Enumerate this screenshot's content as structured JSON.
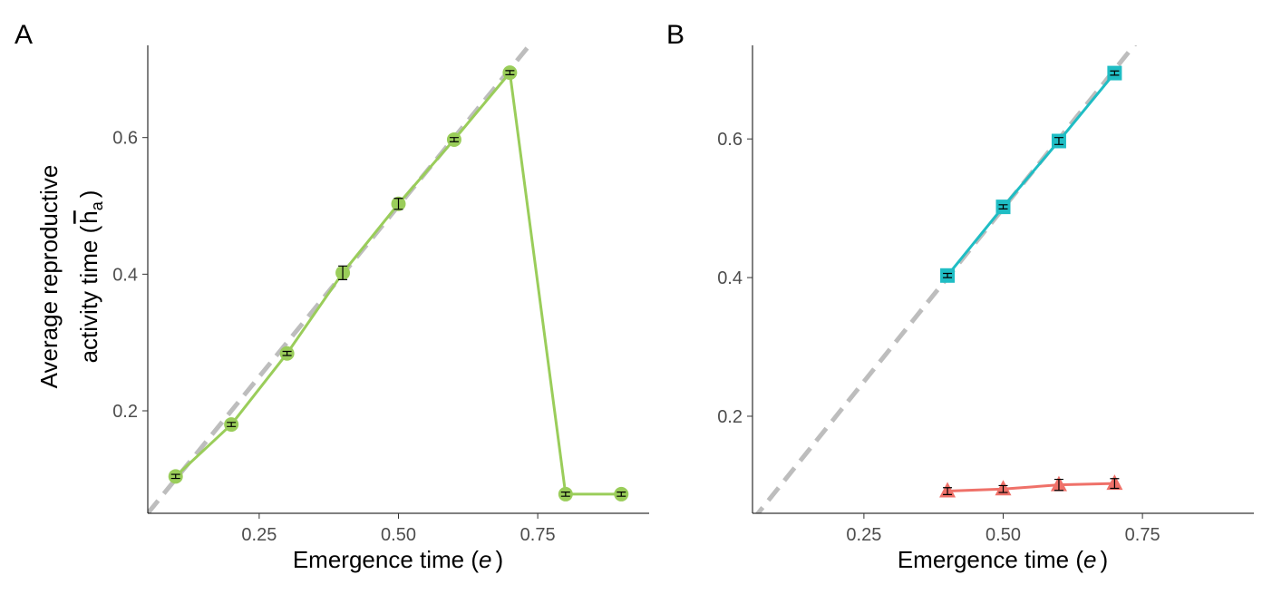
{
  "chart_data": [
    {
      "type": "line",
      "panel_label": "A",
      "xlabel": "Emergence time (",
      "xlabel_var": "e",
      "xlabel_end": ")",
      "ylabel_line1": "Average reproductive",
      "ylabel_line2": "activity time (",
      "ylabel_var": "h",
      "ylabel_sub": "a",
      "ylabel_end": ")",
      "xlim": [
        0.05,
        0.95
      ],
      "ylim": [
        0.05,
        0.735
      ],
      "x_ticks": [
        "0.25",
        "0.50",
        "0.75"
      ],
      "x_tick_values": [
        0.25,
        0.5,
        0.75
      ],
      "y_ticks": [
        "0.2",
        "0.4",
        "0.6"
      ],
      "y_tick_values": [
        0.2,
        0.4,
        0.6
      ],
      "grid": false,
      "reference_line": {
        "style": "dashed",
        "color": "#bdbdbd",
        "slope": 1,
        "intercept": 0
      },
      "series": [
        {
          "color": "#9acd5a",
          "marker": "circle",
          "x": [
            0.1,
            0.2,
            0.3,
            0.4,
            0.5,
            0.6,
            0.7,
            0.8,
            0.9
          ],
          "y": [
            0.104,
            0.18,
            0.284,
            0.402,
            0.503,
            0.597,
            0.695,
            0.078,
            0.078
          ],
          "err": [
            0.003,
            0.003,
            0.003,
            0.01,
            0.008,
            0.003,
            0.003,
            0.003,
            0.003
          ]
        }
      ]
    },
    {
      "type": "line",
      "panel_label": "B",
      "xlabel": "Emergence time (",
      "xlabel_var": "e",
      "xlabel_end": ")",
      "xlim": [
        0.05,
        0.95
      ],
      "ylim": [
        0.06,
        0.735
      ],
      "x_ticks": [
        "0.25",
        "0.50",
        "0.75"
      ],
      "x_tick_values": [
        0.25,
        0.5,
        0.75
      ],
      "y_ticks": [
        "0.2",
        "0.4",
        "0.6"
      ],
      "y_tick_values": [
        0.2,
        0.4,
        0.6
      ],
      "grid": false,
      "reference_line": {
        "style": "dashed",
        "color": "#bdbdbd",
        "slope": 1,
        "intercept": 0
      },
      "series": [
        {
          "color": "#1fbdc4",
          "marker": "square",
          "x": [
            0.4,
            0.5,
            0.6,
            0.7
          ],
          "y": [
            0.403,
            0.502,
            0.597,
            0.695
          ],
          "err": [
            0.003,
            0.003,
            0.005,
            0.003
          ]
        },
        {
          "color": "#ef7169",
          "marker": "triangle",
          "x": [
            0.4,
            0.5,
            0.6,
            0.7
          ],
          "y": [
            0.092,
            0.095,
            0.101,
            0.103
          ],
          "err": [
            0.005,
            0.005,
            0.008,
            0.007
          ]
        }
      ]
    }
  ]
}
